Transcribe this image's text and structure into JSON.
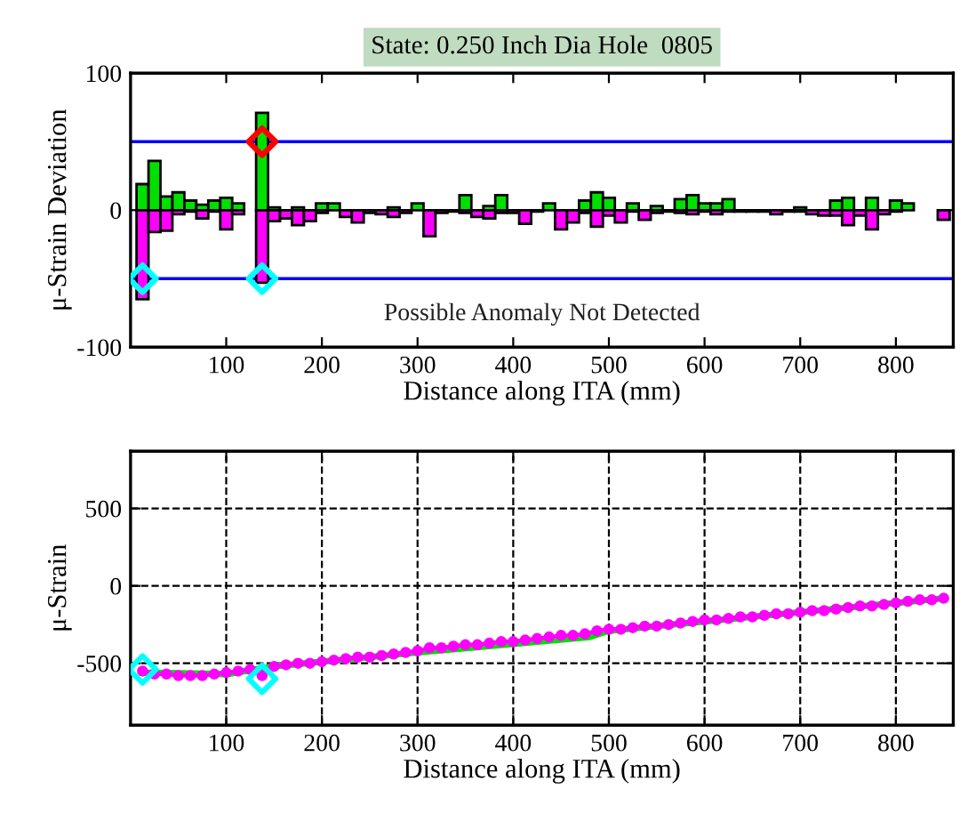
{
  "chart_data": [
    {
      "type": "bar",
      "title": "State: 0.250 Inch Dia Hole  0805",
      "xlabel": "Distance along ITA (mm)",
      "ylabel": "μ-Strain Deviation",
      "x": [
        12.5,
        25,
        37.5,
        50,
        62.5,
        75,
        87.5,
        100,
        112.5,
        125,
        137.5,
        150,
        162.5,
        175,
        187.5,
        200,
        212.5,
        225,
        237.5,
        250,
        262.5,
        275,
        287.5,
        300,
        312.5,
        325,
        337.5,
        350,
        362.5,
        375,
        387.5,
        400,
        412.5,
        425,
        437.5,
        450,
        462.5,
        475,
        487.5,
        500,
        512.5,
        525,
        537.5,
        550,
        562.5,
        575,
        587.5,
        600,
        612.5,
        625,
        637.5,
        650,
        662.5,
        675,
        687.5,
        700,
        712.5,
        725,
        737.5,
        750,
        762.5,
        775,
        787.5,
        800,
        812.5,
        825,
        837.5,
        850
      ],
      "series": [
        {
          "color": "#00e000",
          "values": [
            19,
            36,
            10,
            13,
            7,
            4,
            7,
            9,
            5,
            null,
            71,
            2,
            null,
            2,
            null,
            5,
            5,
            null,
            null,
            null,
            null,
            2,
            null,
            5,
            null,
            null,
            null,
            11,
            null,
            3,
            11,
            null,
            null,
            null,
            5,
            null,
            null,
            7,
            13,
            9,
            null,
            5,
            null,
            3,
            null,
            8,
            11,
            5,
            5,
            8,
            null,
            null,
            null,
            null,
            null,
            2,
            null,
            null,
            7,
            9,
            null,
            9,
            null,
            7,
            5,
            null,
            null,
            null
          ]
        },
        {
          "color": "#ff00ff",
          "values": [
            -65,
            -16,
            -15,
            -3,
            -1,
            -6,
            -1,
            -14,
            -3,
            null,
            -53,
            -8,
            -6,
            -11,
            -8,
            -2,
            null,
            -5,
            -9,
            -2,
            -3,
            -5,
            -2,
            null,
            -19,
            -2,
            -1,
            -2,
            -5,
            -6,
            -2,
            -2,
            -10,
            -1,
            null,
            -14,
            -9,
            -2,
            -12,
            -4,
            -9,
            -1,
            -7,
            -2,
            -1,
            -2,
            -3,
            -1,
            -3,
            -1,
            -1,
            -1,
            -1,
            -3,
            -1,
            -1,
            -3,
            -4,
            -4,
            -11,
            -4,
            -14,
            -3,
            -1,
            null,
            null,
            null,
            -7
          ]
        },
        {
          "type": "scatter",
          "color": "#ff0000",
          "marker": "diamond",
          "x": [
            137.5
          ],
          "values": [
            50
          ]
        },
        {
          "type": "scatter",
          "color": "#00ffff",
          "marker": "diamond",
          "x": [
            12.5,
            137.5
          ],
          "values": [
            -50,
            -50
          ]
        }
      ],
      "ref_lines": [
        {
          "axis": "y",
          "value": 50,
          "color": "#0000ff"
        },
        {
          "axis": "y",
          "value": -50,
          "color": "#0000ff"
        }
      ],
      "annotations": [
        "Possible Anomaly Not Detected"
      ],
      "xlim": [
        0,
        860
      ],
      "xticks": [
        100,
        200,
        300,
        400,
        500,
        600,
        700,
        800
      ],
      "ylim": [
        -100,
        100
      ],
      "yticks": [
        -100,
        0,
        100
      ],
      "grid": false
    },
    {
      "type": "line",
      "xlabel": "Distance along ITA (mm)",
      "ylabel": "μ-Strain",
      "series": [
        {
          "color": "#00e000",
          "marker": "none",
          "x": [
            12.5,
            100,
            150,
            300,
            480,
            500,
            600,
            700,
            850
          ],
          "values": [
            -560,
            -570,
            -520,
            -430,
            -330,
            -290,
            -230,
            -170,
            -80
          ]
        },
        {
          "color": "#ff00ff",
          "marker": "circle",
          "x": [
            12.5,
            25,
            37.5,
            50,
            62.5,
            75,
            87.5,
            100,
            112.5,
            125,
            137.5,
            150,
            162.5,
            175,
            187.5,
            200,
            212.5,
            225,
            237.5,
            250,
            262.5,
            275,
            287.5,
            300,
            312.5,
            325,
            337.5,
            350,
            362.5,
            375,
            387.5,
            400,
            412.5,
            425,
            437.5,
            450,
            462.5,
            475,
            487.5,
            500,
            512.5,
            525,
            537.5,
            550,
            562.5,
            575,
            587.5,
            600,
            612.5,
            625,
            637.5,
            650,
            662.5,
            675,
            687.5,
            700,
            712.5,
            725,
            737.5,
            750,
            762.5,
            775,
            787.5,
            800,
            812.5,
            825,
            837.5,
            850
          ],
          "values": [
            -550,
            -570,
            -570,
            -580,
            -580,
            -580,
            -570,
            -560,
            -550,
            -540,
            -580,
            -520,
            -510,
            -500,
            -500,
            -490,
            -480,
            -470,
            -460,
            -460,
            -450,
            -440,
            -430,
            -420,
            -400,
            -400,
            -390,
            -380,
            -380,
            -370,
            -360,
            -360,
            -350,
            -340,
            -330,
            -320,
            -320,
            -310,
            -290,
            -280,
            -280,
            -270,
            -260,
            -260,
            -250,
            -240,
            -230,
            -220,
            -220,
            -210,
            -200,
            -200,
            -190,
            -180,
            -180,
            -170,
            -160,
            -160,
            -150,
            -140,
            -130,
            -130,
            -120,
            -110,
            -100,
            -90,
            -90,
            -80
          ]
        },
        {
          "type": "scatter",
          "color": "#00ffff",
          "marker": "diamond",
          "x": [
            12.5,
            137.5
          ],
          "values": [
            -540,
            -600
          ]
        }
      ],
      "xlim": [
        0,
        860
      ],
      "xticks": [
        100,
        200,
        300,
        400,
        500,
        600,
        700,
        800
      ],
      "ylim": [
        -900,
        870
      ],
      "yticks": [
        -500,
        0,
        500
      ],
      "grid": true
    }
  ]
}
